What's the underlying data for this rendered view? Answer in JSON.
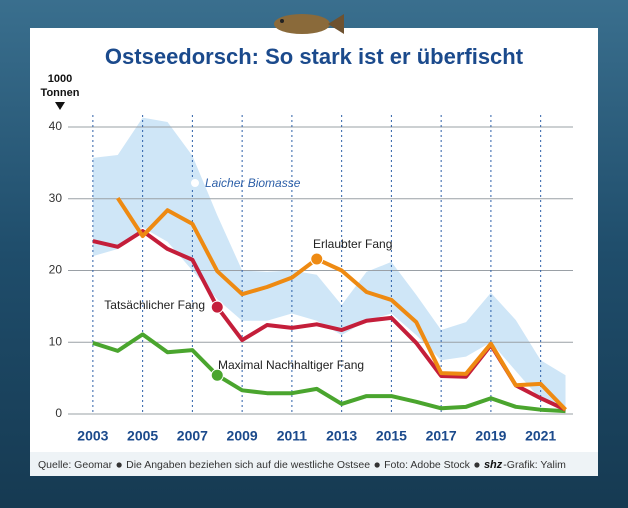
{
  "chart_data": {
    "type": "line",
    "title": "Ostseedorsch: So stark ist er überfischt",
    "ylabel": [
      "1000",
      "Tonnen"
    ],
    "x": [
      2003,
      2004,
      2005,
      2006,
      2007,
      2008,
      2009,
      2010,
      2011,
      2012,
      2013,
      2014,
      2015,
      2016,
      2017,
      2018,
      2019,
      2020,
      2021,
      2022
    ],
    "xlim": [
      2002,
      2022.3
    ],
    "xticks": [
      2003,
      2005,
      2007,
      2009,
      2011,
      2013,
      2015,
      2017,
      2019,
      2021
    ],
    "ylim": [
      0,
      40
    ],
    "yticks": [
      0,
      10,
      20,
      30,
      40
    ],
    "grid": true,
    "series": [
      {
        "name": "Laicher Biomasse",
        "color": "#cfe6f7",
        "high": [
          35.7,
          36.1,
          41.3,
          40.7,
          36,
          27.7,
          20,
          19.8,
          20,
          19.4,
          15.2,
          19.8,
          21.2,
          16.6,
          11.7,
          12.8,
          16.9,
          13.1,
          7.5,
          5.4
        ],
        "low": [
          22,
          23,
          26,
          24,
          20,
          16,
          13,
          13,
          14,
          13,
          11,
          13,
          14,
          11,
          7.5,
          8,
          10,
          6,
          2,
          1
        ]
      },
      {
        "name": "Erlaubter Fang",
        "color": "#ee8a12",
        "values": [
          null,
          30.1,
          24.8,
          28.4,
          26.5,
          19.9,
          16.7,
          17.7,
          19,
          21.6,
          20,
          17,
          15.9,
          12.8,
          5.7,
          5.6,
          9.8,
          4,
          4.2,
          0.6
        ]
      },
      {
        "name": "Tatsächlicher Fang",
        "color": "#c41e3a",
        "values": [
          24.1,
          23.3,
          25.5,
          23,
          21.5,
          14.9,
          10.3,
          12.4,
          12,
          12.5,
          11.7,
          13,
          13.4,
          9.9,
          5.3,
          5.2,
          9.6,
          4,
          2.2,
          0.6
        ]
      },
      {
        "name": "Maximal Nachhaltiger Fang",
        "color": "#4aa52e",
        "values": [
          9.9,
          8.8,
          11.1,
          8.6,
          8.9,
          5.4,
          3.3,
          2.9,
          2.9,
          3.5,
          1.4,
          2.5,
          2.5,
          1.7,
          0.8,
          1,
          2.2,
          1,
          0.6,
          0.4
        ]
      }
    ],
    "source": [
      "Quelle: Geomar",
      "Die Angaben beziehen sich auf die westliche Ostsee",
      "Foto: Adobe Stock"
    ],
    "credit_logo": "shz",
    "credit": "-Grafik: Yalim"
  }
}
